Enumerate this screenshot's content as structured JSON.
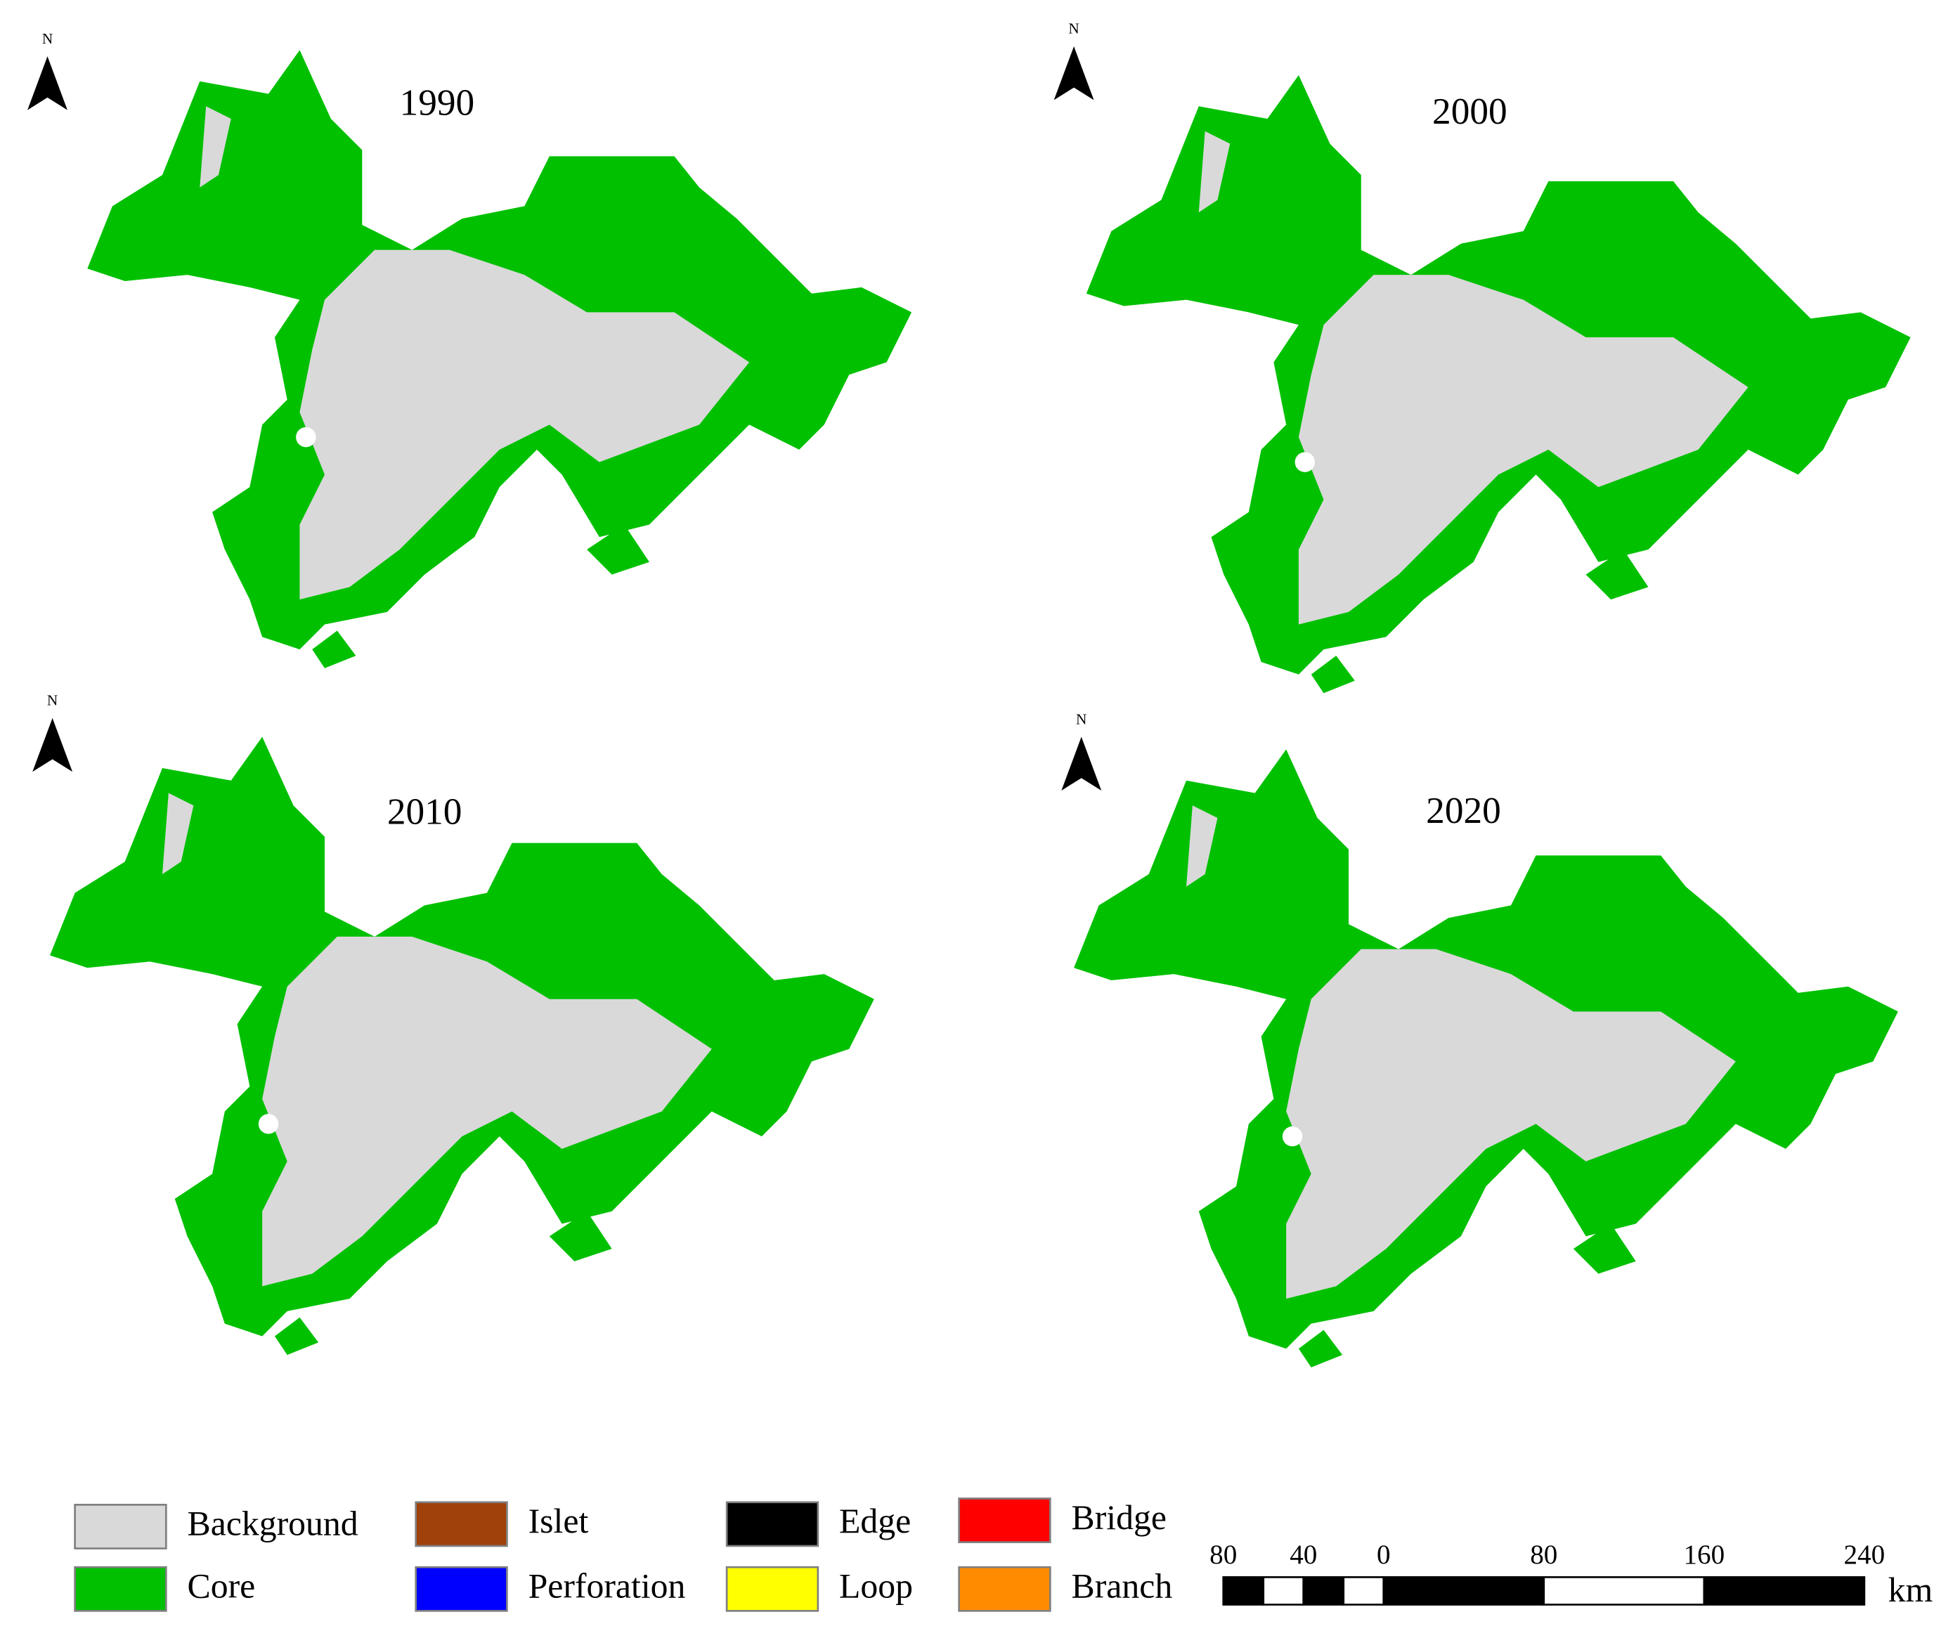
{
  "panels": [
    {
      "title": "1990",
      "north": "N"
    },
    {
      "title": "2000",
      "north": "N"
    },
    {
      "title": "2010",
      "north": "N"
    },
    {
      "title": "2020",
      "north": "N"
    }
  ],
  "legend": [
    {
      "label": "Background",
      "color": "#d9d9d9"
    },
    {
      "label": "Core",
      "color": "#00c000"
    },
    {
      "label": "Islet",
      "color": "#a0400a"
    },
    {
      "label": "Perforation",
      "color": "#0000ff"
    },
    {
      "label": "Edge",
      "color": "#000000"
    },
    {
      "label": "Loop",
      "color": "#ffff00"
    },
    {
      "label": "Bridge",
      "color": "#ff0000"
    },
    {
      "label": "Branch",
      "color": "#ff8c00"
    }
  ],
  "scale_bar": {
    "ticks": [
      {
        "value": -80,
        "label": "80"
      },
      {
        "value": -40,
        "label": "40"
      },
      0,
      80,
      160,
      240
    ],
    "unit": "km"
  }
}
